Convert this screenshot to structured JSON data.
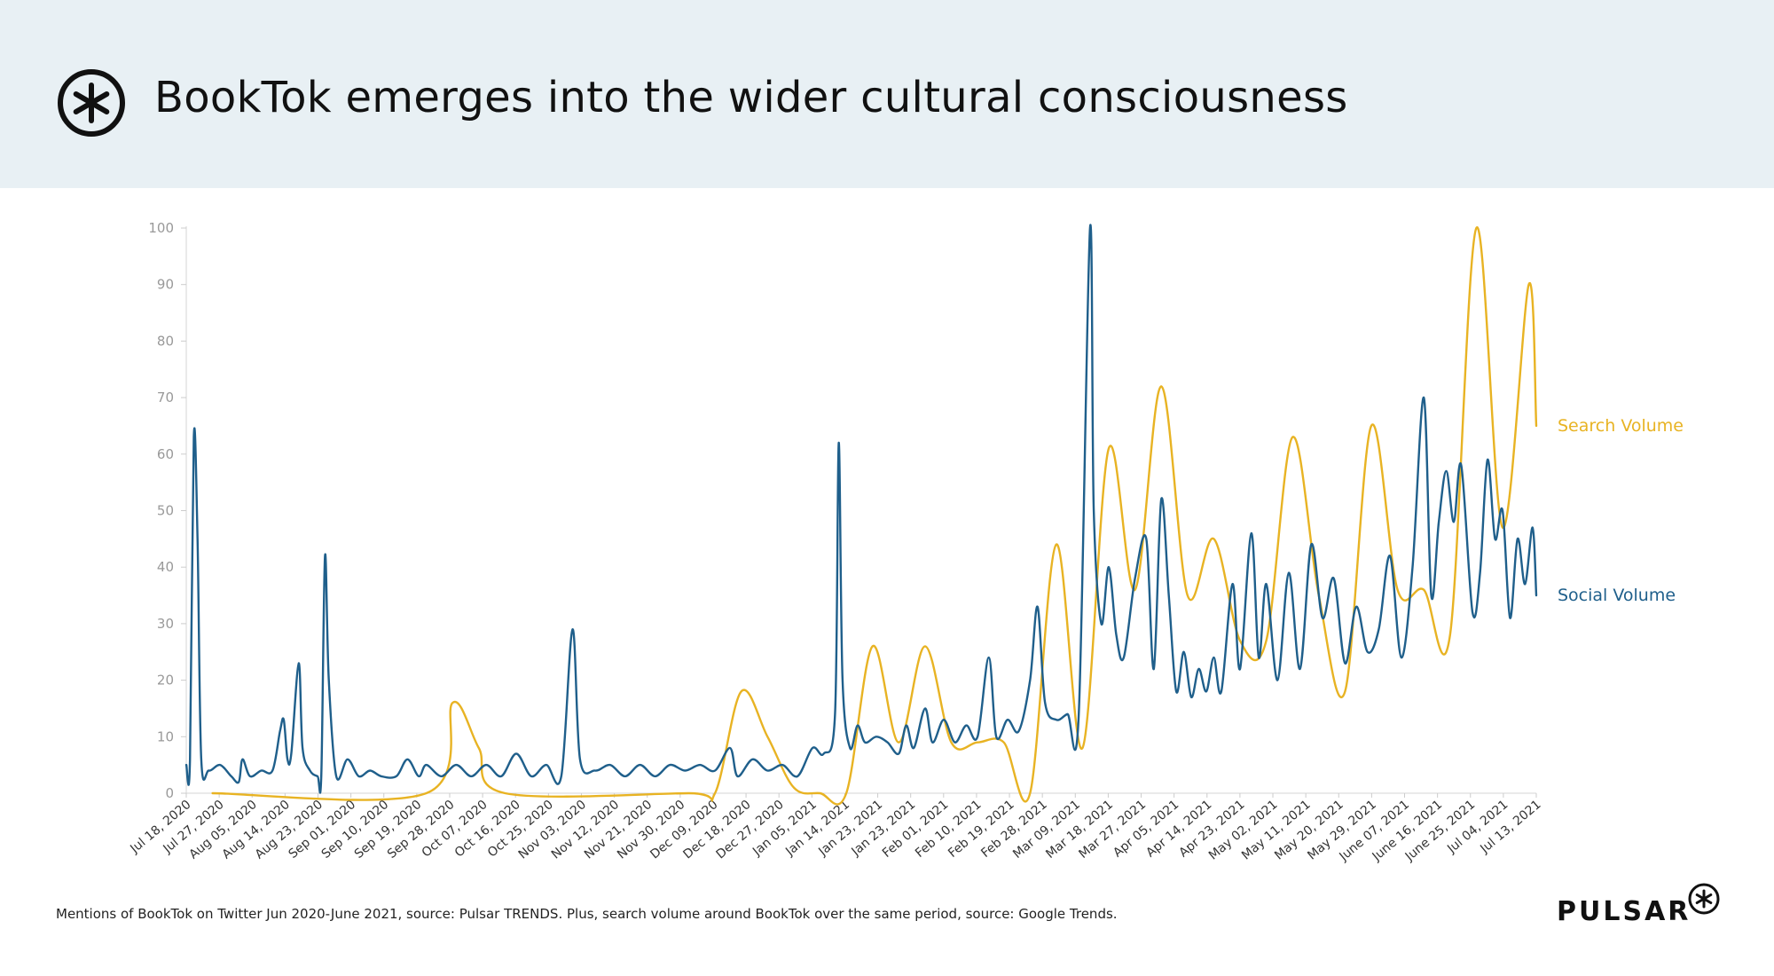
{
  "header": {
    "title": "BookTok emerges into the wider cultural consciousness"
  },
  "footer": {
    "note": "Mentions of BookTok on Twitter Jun 2020-June 2021, source: Pulsar TRENDS. Plus, search volume around BookTok over the same period, source: Google Trends.",
    "brand": "PULSAR"
  },
  "colors": {
    "social": "#1f5f8b",
    "search": "#e8b323",
    "header_bg": "#e8f0f4",
    "axis_text": "#999999"
  },
  "chart_data": {
    "type": "line",
    "title": "",
    "xlabel": "",
    "ylabel": "",
    "ylim": [
      0,
      100
    ],
    "yticks": [
      0,
      10,
      20,
      30,
      40,
      50,
      60,
      70,
      80,
      90,
      100
    ],
    "x_start": "2020-07-18",
    "x_end": "2021-07-13",
    "xtick_labels": [
      "Jul 18, 2020",
      "Jul 27, 2020",
      "Aug 05, 2020",
      "Aug 14, 2020",
      "Aug 23, 2020",
      "Sep 01, 2020",
      "Sep 10, 2020",
      "Sep 19, 2020",
      "Sep 28, 2020",
      "Oct 07, 2020",
      "Oct 16, 2020",
      "Oct 25, 2020",
      "Nov 03, 2020",
      "Nov 12, 2020",
      "Nov 21, 2020",
      "Nov 30, 2020",
      "Dec 09, 2020",
      "Dec 18, 2020",
      "Dec 27, 2020",
      "Jan 05, 2021",
      "Jan 14, 2021",
      "Jan 23, 2021",
      "Jan 23, 2021",
      "Feb 01, 2021",
      "Feb 10, 2021",
      "Feb 19, 2021",
      "Feb 28, 2021",
      "Mar 09, 2021",
      "Mar 18, 2021",
      "Mar 27, 2021",
      "Apr 05, 2021",
      "Apr 14, 2021",
      "Apr 23, 2021",
      "May 02, 2021",
      "May 11, 2021",
      "May 20, 2021",
      "May 29, 2021",
      "June 07, 2021",
      "June 16, 2021",
      "June 25, 2021",
      "Jul 04, 2021",
      "Jul 13, 2021"
    ],
    "grid": false,
    "legend": "right, inline at line ends",
    "series": [
      {
        "name": "Social Volume",
        "points": [
          {
            "date": "2020-07-18",
            "value": 5
          },
          {
            "date": "2020-07-19",
            "value": 6
          },
          {
            "date": "2020-07-20",
            "value": 63
          },
          {
            "date": "2020-07-21",
            "value": 45
          },
          {
            "date": "2020-07-22",
            "value": 6
          },
          {
            "date": "2020-07-24",
            "value": 4
          },
          {
            "date": "2020-07-27",
            "value": 5
          },
          {
            "date": "2020-07-30",
            "value": 3
          },
          {
            "date": "2020-08-01",
            "value": 2
          },
          {
            "date": "2020-08-02",
            "value": 6
          },
          {
            "date": "2020-08-04",
            "value": 3
          },
          {
            "date": "2020-08-07",
            "value": 4
          },
          {
            "date": "2020-08-10",
            "value": 4
          },
          {
            "date": "2020-08-12",
            "value": 11
          },
          {
            "date": "2020-08-13",
            "value": 13
          },
          {
            "date": "2020-08-14",
            "value": 6
          },
          {
            "date": "2020-08-15",
            "value": 7
          },
          {
            "date": "2020-08-17",
            "value": 23
          },
          {
            "date": "2020-08-18",
            "value": 8
          },
          {
            "date": "2020-08-20",
            "value": 4
          },
          {
            "date": "2020-08-22",
            "value": 3
          },
          {
            "date": "2020-08-23",
            "value": 3
          },
          {
            "date": "2020-08-24",
            "value": 42
          },
          {
            "date": "2020-08-25",
            "value": 20
          },
          {
            "date": "2020-08-27",
            "value": 3
          },
          {
            "date": "2020-08-30",
            "value": 6
          },
          {
            "date": "2020-09-02",
            "value": 3
          },
          {
            "date": "2020-09-05",
            "value": 4
          },
          {
            "date": "2020-09-08",
            "value": 3
          },
          {
            "date": "2020-09-12",
            "value": 3
          },
          {
            "date": "2020-09-15",
            "value": 6
          },
          {
            "date": "2020-09-18",
            "value": 3
          },
          {
            "date": "2020-09-20",
            "value": 5
          },
          {
            "date": "2020-09-24",
            "value": 3
          },
          {
            "date": "2020-09-28",
            "value": 5
          },
          {
            "date": "2020-10-02",
            "value": 3
          },
          {
            "date": "2020-10-06",
            "value": 5
          },
          {
            "date": "2020-10-10",
            "value": 3
          },
          {
            "date": "2020-10-14",
            "value": 7
          },
          {
            "date": "2020-10-18",
            "value": 3
          },
          {
            "date": "2020-10-22",
            "value": 5
          },
          {
            "date": "2020-10-26",
            "value": 3
          },
          {
            "date": "2020-10-29",
            "value": 29
          },
          {
            "date": "2020-10-31",
            "value": 6
          },
          {
            "date": "2020-11-04",
            "value": 4
          },
          {
            "date": "2020-11-08",
            "value": 5
          },
          {
            "date": "2020-11-12",
            "value": 3
          },
          {
            "date": "2020-11-16",
            "value": 5
          },
          {
            "date": "2020-11-20",
            "value": 3
          },
          {
            "date": "2020-11-24",
            "value": 5
          },
          {
            "date": "2020-11-28",
            "value": 4
          },
          {
            "date": "2020-12-02",
            "value": 5
          },
          {
            "date": "2020-12-06",
            "value": 4
          },
          {
            "date": "2020-12-10",
            "value": 8
          },
          {
            "date": "2020-12-12",
            "value": 3
          },
          {
            "date": "2020-12-16",
            "value": 6
          },
          {
            "date": "2020-12-20",
            "value": 4
          },
          {
            "date": "2020-12-24",
            "value": 5
          },
          {
            "date": "2020-12-28",
            "value": 3
          },
          {
            "date": "2021-01-01",
            "value": 8
          },
          {
            "date": "2021-01-04",
            "value": 7
          },
          {
            "date": "2021-01-07",
            "value": 14
          },
          {
            "date": "2021-01-08",
            "value": 62
          },
          {
            "date": "2021-01-09",
            "value": 20
          },
          {
            "date": "2021-01-11",
            "value": 8
          },
          {
            "date": "2021-01-13",
            "value": 12
          },
          {
            "date": "2021-01-15",
            "value": 9
          },
          {
            "date": "2021-01-18",
            "value": 10
          },
          {
            "date": "2021-01-21",
            "value": 9
          },
          {
            "date": "2021-01-24",
            "value": 7
          },
          {
            "date": "2021-01-26",
            "value": 12
          },
          {
            "date": "2021-01-28",
            "value": 8
          },
          {
            "date": "2021-01-31",
            "value": 15
          },
          {
            "date": "2021-02-02",
            "value": 9
          },
          {
            "date": "2021-02-05",
            "value": 13
          },
          {
            "date": "2021-02-08",
            "value": 9
          },
          {
            "date": "2021-02-11",
            "value": 12
          },
          {
            "date": "2021-02-14",
            "value": 10
          },
          {
            "date": "2021-02-17",
            "value": 24
          },
          {
            "date": "2021-02-19",
            "value": 10
          },
          {
            "date": "2021-02-22",
            "value": 13
          },
          {
            "date": "2021-02-25",
            "value": 11
          },
          {
            "date": "2021-02-28",
            "value": 20
          },
          {
            "date": "2021-03-02",
            "value": 33
          },
          {
            "date": "2021-03-04",
            "value": 16
          },
          {
            "date": "2021-03-07",
            "value": 13
          },
          {
            "date": "2021-03-10",
            "value": 14
          },
          {
            "date": "2021-03-13",
            "value": 14
          },
          {
            "date": "2021-03-16",
            "value": 100
          },
          {
            "date": "2021-03-17",
            "value": 50
          },
          {
            "date": "2021-03-19",
            "value": 30
          },
          {
            "date": "2021-03-21",
            "value": 40
          },
          {
            "date": "2021-03-23",
            "value": 28
          },
          {
            "date": "2021-03-25",
            "value": 24
          },
          {
            "date": "2021-03-28",
            "value": 38
          },
          {
            "date": "2021-03-31",
            "value": 45
          },
          {
            "date": "2021-04-02",
            "value": 22
          },
          {
            "date": "2021-04-04",
            "value": 52
          },
          {
            "date": "2021-04-06",
            "value": 35
          },
          {
            "date": "2021-04-08",
            "value": 18
          },
          {
            "date": "2021-04-10",
            "value": 25
          },
          {
            "date": "2021-04-12",
            "value": 17
          },
          {
            "date": "2021-04-14",
            "value": 22
          },
          {
            "date": "2021-04-16",
            "value": 18
          },
          {
            "date": "2021-04-18",
            "value": 24
          },
          {
            "date": "2021-04-20",
            "value": 18
          },
          {
            "date": "2021-04-23",
            "value": 37
          },
          {
            "date": "2021-04-25",
            "value": 22
          },
          {
            "date": "2021-04-28",
            "value": 46
          },
          {
            "date": "2021-04-30",
            "value": 24
          },
          {
            "date": "2021-05-02",
            "value": 37
          },
          {
            "date": "2021-05-05",
            "value": 20
          },
          {
            "date": "2021-05-08",
            "value": 39
          },
          {
            "date": "2021-05-11",
            "value": 22
          },
          {
            "date": "2021-05-14",
            "value": 44
          },
          {
            "date": "2021-05-17",
            "value": 31
          },
          {
            "date": "2021-05-20",
            "value": 38
          },
          {
            "date": "2021-05-23",
            "value": 23
          },
          {
            "date": "2021-05-26",
            "value": 33
          },
          {
            "date": "2021-05-29",
            "value": 25
          },
          {
            "date": "2021-06-01",
            "value": 29
          },
          {
            "date": "2021-06-04",
            "value": 42
          },
          {
            "date": "2021-06-07",
            "value": 24
          },
          {
            "date": "2021-06-10",
            "value": 40
          },
          {
            "date": "2021-06-13",
            "value": 70
          },
          {
            "date": "2021-06-15",
            "value": 35
          },
          {
            "date": "2021-06-17",
            "value": 48
          },
          {
            "date": "2021-06-19",
            "value": 57
          },
          {
            "date": "2021-06-21",
            "value": 48
          },
          {
            "date": "2021-06-23",
            "value": 58
          },
          {
            "date": "2021-06-26",
            "value": 32
          },
          {
            "date": "2021-06-28",
            "value": 39
          },
          {
            "date": "2021-06-30",
            "value": 59
          },
          {
            "date": "2021-07-02",
            "value": 45
          },
          {
            "date": "2021-07-04",
            "value": 50
          },
          {
            "date": "2021-07-06",
            "value": 31
          },
          {
            "date": "2021-07-08",
            "value": 45
          },
          {
            "date": "2021-07-10",
            "value": 37
          },
          {
            "date": "2021-07-12",
            "value": 47
          },
          {
            "date": "2021-07-13",
            "value": 35
          }
        ]
      },
      {
        "name": "Search Volume",
        "points": [
          {
            "date": "2020-07-25",
            "value": 0
          },
          {
            "date": "2020-09-20",
            "value": 0
          },
          {
            "date": "2020-09-27",
            "value": 16
          },
          {
            "date": "2020-10-04",
            "value": 8
          },
          {
            "date": "2020-10-11",
            "value": 0
          },
          {
            "date": "2020-11-29",
            "value": 0
          },
          {
            "date": "2020-12-06",
            "value": 0
          },
          {
            "date": "2020-12-13",
            "value": 18
          },
          {
            "date": "2020-12-20",
            "value": 10
          },
          {
            "date": "2020-12-27",
            "value": 1
          },
          {
            "date": "2021-01-03",
            "value": 0
          },
          {
            "date": "2021-01-10",
            "value": 0
          },
          {
            "date": "2021-01-17",
            "value": 26
          },
          {
            "date": "2021-01-24",
            "value": 9
          },
          {
            "date": "2021-01-31",
            "value": 26
          },
          {
            "date": "2021-02-07",
            "value": 9
          },
          {
            "date": "2021-02-14",
            "value": 9
          },
          {
            "date": "2021-02-21",
            "value": 9
          },
          {
            "date": "2021-02-28",
            "value": 0
          },
          {
            "date": "2021-03-07",
            "value": 44
          },
          {
            "date": "2021-03-14",
            "value": 8
          },
          {
            "date": "2021-03-21",
            "value": 61
          },
          {
            "date": "2021-03-28",
            "value": 36
          },
          {
            "date": "2021-04-04",
            "value": 72
          },
          {
            "date": "2021-04-11",
            "value": 35
          },
          {
            "date": "2021-04-18",
            "value": 45
          },
          {
            "date": "2021-04-25",
            "value": 27
          },
          {
            "date": "2021-05-02",
            "value": 27
          },
          {
            "date": "2021-05-09",
            "value": 63
          },
          {
            "date": "2021-05-16",
            "value": 35
          },
          {
            "date": "2021-05-23",
            "value": 18
          },
          {
            "date": "2021-05-30",
            "value": 65
          },
          {
            "date": "2021-06-06",
            "value": 36
          },
          {
            "date": "2021-06-13",
            "value": 36
          },
          {
            "date": "2021-06-20",
            "value": 28
          },
          {
            "date": "2021-06-27",
            "value": 100
          },
          {
            "date": "2021-07-04",
            "value": 47
          },
          {
            "date": "2021-07-11",
            "value": 90
          },
          {
            "date": "2021-07-13",
            "value": 65
          }
        ]
      }
    ]
  }
}
